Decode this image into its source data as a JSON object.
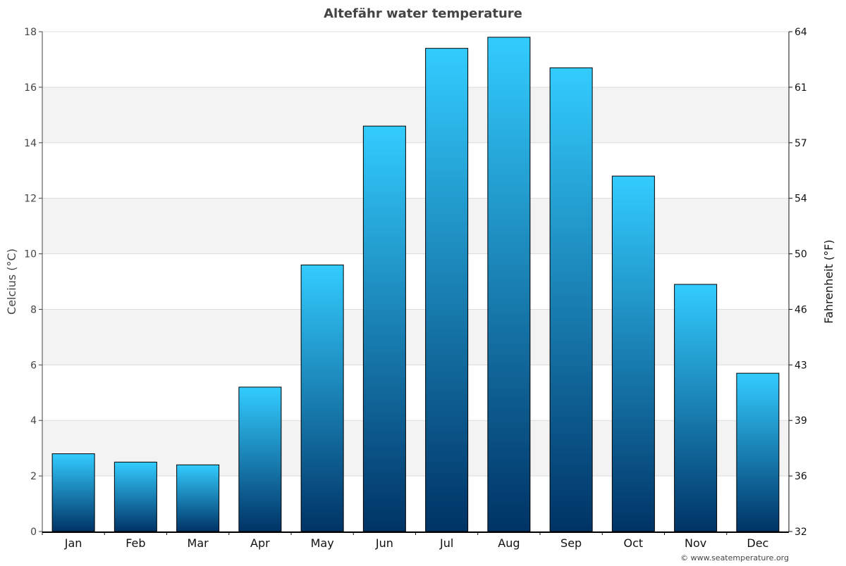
{
  "chart_data": {
    "type": "bar",
    "title": "Altefähr water temperature",
    "ylabel": "Celcius (°C)",
    "y2label": "Fahrenheit (°F)",
    "xlabel": "",
    "categories": [
      "Jan",
      "Feb",
      "Mar",
      "Apr",
      "May",
      "Jun",
      "Jul",
      "Aug",
      "Sep",
      "Oct",
      "Nov",
      "Dec"
    ],
    "values": [
      2.8,
      2.5,
      2.4,
      5.2,
      9.6,
      14.6,
      17.4,
      17.8,
      16.7,
      12.8,
      8.9,
      5.7
    ],
    "ylim": [
      0,
      18
    ],
    "yticks": [
      0,
      2,
      4,
      6,
      8,
      10,
      12,
      14,
      16,
      18
    ],
    "y2ticks": [
      "32",
      "36",
      "39",
      "43",
      "46",
      "50",
      "54",
      "57",
      "61",
      "64"
    ],
    "grid": true,
    "legend": "none",
    "colors": {
      "bar_top": "#33ccff",
      "bar_bottom": "#003366",
      "band": "#f3f3f3",
      "grid": "#dddddd"
    }
  },
  "footer": {
    "credit": "© www.seatemperature.org"
  }
}
